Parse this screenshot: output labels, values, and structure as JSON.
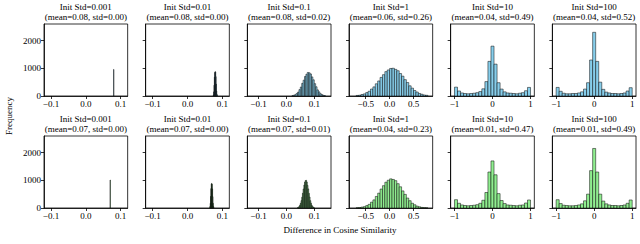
{
  "xlabel": "Difference in Cosine Similarity",
  "ylabel": "Frequency",
  "chart_data": [
    {
      "type": "histogram",
      "title": "Init Std=0.001",
      "subtitle": "(mean=0.08, std=0.00)",
      "color": "#87ceeb",
      "bins": [
        0.0795,
        0.0805
      ],
      "counts": [
        960
      ],
      "xlim": [
        -0.12,
        0.12
      ],
      "xticks": [
        {
          "value": -0.1,
          "label": "−0.1"
        },
        {
          "value": 0,
          "label": "0.0"
        },
        0.1
      ],
      "ylim": [
        0,
        2600
      ],
      "yticks": [
        0,
        1000,
        2000
      ]
    },
    {
      "type": "histogram",
      "title": "Init Std=0.01",
      "subtitle": "(mean=0.08, std=0.00)",
      "color": "#87ceeb",
      "bins": [
        0.074,
        0.075,
        0.076,
        0.077,
        0.078,
        0.079,
        0.08,
        0.081,
        0.082,
        0.083,
        0.084,
        0.085,
        0.086
      ],
      "counts": [
        40,
        150,
        390,
        680,
        850,
        880,
        870,
        700,
        430,
        180,
        60,
        15
      ],
      "xlim": [
        -0.12,
        0.12
      ],
      "xticks": [
        {
          "value": -0.1,
          "label": "−0.1"
        },
        {
          "value": 0,
          "label": "0.0"
        },
        0.1
      ],
      "ylim": [
        0,
        2600
      ],
      "yticks": [
        0,
        1000,
        2000
      ],
      "tick_labels": "x"
    },
    {
      "type": "histogram",
      "title": "Init Std=0.1",
      "subtitle": "(mean=0.08, std=0.02)",
      "color": "#87ceeb",
      "bins": [
        0.02,
        0.025,
        0.03,
        0.035,
        0.04,
        0.045,
        0.05,
        0.055,
        0.06,
        0.065,
        0.07,
        0.075,
        0.08,
        0.085,
        0.09,
        0.095,
        0.1,
        0.105,
        0.11,
        0.115,
        0.12,
        0.125,
        0.13,
        0.135,
        0.14
      ],
      "counts": [
        12,
        29,
        48,
        92,
        140,
        231,
        325,
        458,
        572,
        705,
        786,
        850,
        838,
        797,
        690,
        585,
        446,
        334,
        221,
        150,
        85,
        53,
        25,
        15
      ],
      "xlim": [
        -0.14,
        0.16
      ],
      "xticks": [
        {
          "value": -0.1,
          "label": "−0.1"
        },
        {
          "value": 0,
          "label": "0.0"
        },
        0.1
      ],
      "ylim": [
        0,
        2600
      ],
      "yticks": [
        0,
        1000,
        2000
      ],
      "tick_labels": "x"
    },
    {
      "type": "histogram",
      "title": "Init Std=1",
      "subtitle": "(mean=0.06, std=0.26)",
      "color": "#87ceeb",
      "bins": [
        -0.7,
        -0.65,
        -0.6,
        -0.55,
        -0.5,
        -0.45,
        -0.4,
        -0.35,
        -0.3,
        -0.25,
        -0.2,
        -0.15,
        -0.1,
        -0.05,
        0,
        0.05,
        0.1,
        0.15,
        0.2,
        0.25,
        0.3,
        0.35,
        0.4,
        0.45,
        0.5,
        0.55,
        0.6,
        0.65,
        0.7,
        0.75,
        0.8
      ],
      "counts": [
        20,
        28,
        54,
        77,
        124,
        171,
        252,
        329,
        441,
        543,
        672,
        770,
        880,
        941,
        995,
        1002,
        962,
        912,
        811,
        716,
        590,
        486,
        368,
        284,
        198,
        144,
        91,
        63,
        36,
        25
      ],
      "xlim": [
        -0.85,
        0.9
      ],
      "xticks": [
        {
          "value": -0.5,
          "label": "−0.5"
        },
        {
          "value": 0,
          "label": "0.0"
        },
        0.5
      ],
      "ylim": [
        0,
        2600
      ],
      "yticks": [
        0,
        1000,
        2000
      ],
      "tick_labels": "x"
    },
    {
      "type": "histogram",
      "title": "Init Std=10",
      "subtitle": "(mean=0.04, std=0.49)",
      "color": "#87ceeb",
      "bins": [
        -1,
        -0.92,
        -0.84,
        -0.76,
        -0.68,
        -0.6,
        -0.52,
        -0.44,
        -0.36,
        -0.28,
        -0.2,
        -0.12,
        -0.04,
        0.04,
        0.12,
        0.2,
        0.28,
        0.36,
        0.44,
        0.52,
        0.6,
        0.68,
        0.76,
        0.84,
        0.92,
        1
      ],
      "counts": [
        320,
        180,
        110,
        90,
        80,
        90,
        100,
        120,
        160,
        260,
        520,
        1250,
        1800,
        1150,
        480,
        250,
        150,
        110,
        100,
        90,
        80,
        100,
        120,
        190,
        310
      ],
      "xlim": [
        -1.1,
        1.1
      ],
      "xticks": [
        {
          "value": -1,
          "label": "−1"
        },
        0,
        1
      ],
      "ylim": [
        0,
        2600
      ],
      "yticks": [
        0,
        1000,
        2000
      ],
      "tick_labels": "x"
    },
    {
      "type": "histogram",
      "title": "Init Std=100",
      "subtitle": "(mean=0.04, std=0.52)",
      "color": "#87ceeb",
      "bins": [
        -1,
        -0.92,
        -0.84,
        -0.76,
        -0.68,
        -0.6,
        -0.52,
        -0.44,
        -0.36,
        -0.28,
        -0.2,
        -0.12,
        -0.04,
        0.04,
        0.12,
        0.2,
        0.28,
        0.36,
        0.44,
        0.52,
        0.6,
        0.68,
        0.76,
        0.84,
        0.92,
        1
      ],
      "counts": [
        310,
        170,
        100,
        80,
        80,
        90,
        90,
        110,
        150,
        250,
        480,
        1300,
        2300,
        1250,
        500,
        240,
        140,
        110,
        90,
        90,
        80,
        90,
        110,
        180,
        300
      ],
      "xlim": [
        -1.1,
        1.1
      ],
      "xticks": [
        {
          "value": -1,
          "label": "−1"
        },
        0,
        1
      ],
      "ylim": [
        0,
        2600
      ],
      "yticks": [
        0,
        1000,
        2000
      ],
      "tick_labels": "x"
    },
    {
      "type": "histogram",
      "title": "Init Std=0.001",
      "subtitle": "(mean=0.07, std=0.00)",
      "color": "#90ee90",
      "bins": [
        0.0695,
        0.0705
      ],
      "counts": [
        1010
      ],
      "xlim": [
        -0.12,
        0.12
      ],
      "xticks": [
        {
          "value": -0.1,
          "label": "−0.1"
        },
        {
          "value": 0,
          "label": "0.0"
        },
        0.1
      ],
      "ylim": [
        0,
        2600
      ],
      "yticks": [
        0,
        1000,
        2000
      ]
    },
    {
      "type": "histogram",
      "title": "Init Std=0.01",
      "subtitle": "(mean=0.07, std=0.00)",
      "color": "#90ee90",
      "bins": [
        0.064,
        0.065,
        0.066,
        0.067,
        0.068,
        0.069,
        0.07,
        0.071,
        0.072,
        0.073,
        0.074,
        0.075,
        0.076
      ],
      "counts": [
        50,
        170,
        420,
        700,
        870,
        890,
        860,
        690,
        410,
        170,
        55,
        12
      ],
      "xlim": [
        -0.12,
        0.12
      ],
      "xticks": [
        {
          "value": -0.1,
          "label": "−0.1"
        },
        {
          "value": 0,
          "label": "0.0"
        },
        0.1
      ],
      "ylim": [
        0,
        2600
      ],
      "yticks": [
        0,
        1000,
        2000
      ],
      "tick_labels": "x"
    },
    {
      "type": "histogram",
      "title": "Init Std=0.1",
      "subtitle": "(mean=0.07, std=0.01)",
      "color": "#90ee90",
      "bins": [
        0.04,
        0.0425,
        0.045,
        0.0475,
        0.05,
        0.0525,
        0.055,
        0.0575,
        0.06,
        0.0625,
        0.065,
        0.0675,
        0.07,
        0.0725,
        0.075,
        0.0775,
        0.08,
        0.0825,
        0.085,
        0.0875,
        0.09,
        0.0925,
        0.095,
        0.0975,
        0.1
      ],
      "counts": [
        15,
        33,
        60,
        106,
        172,
        270,
        391,
        534,
        688,
        829,
        935,
        990,
        1000,
        940,
        820,
        690,
        530,
        395,
        265,
        176,
        101,
        63,
        30,
        17
      ],
      "xlim": [
        -0.14,
        0.16
      ],
      "xticks": [
        {
          "value": -0.1,
          "label": "−0.1"
        },
        {
          "value": 0,
          "label": "0.0"
        },
        0.1
      ],
      "ylim": [
        0,
        2600
      ],
      "yticks": [
        0,
        1000,
        2000
      ],
      "tick_labels": "x"
    },
    {
      "type": "histogram",
      "title": "Init Std=1",
      "subtitle": "(mean=0.04, std=0.23)",
      "color": "#90ee90",
      "bins": [
        -0.7,
        -0.65,
        -0.6,
        -0.55,
        -0.5,
        -0.45,
        -0.4,
        -0.35,
        -0.3,
        -0.25,
        -0.2,
        -0.15,
        -0.1,
        -0.05,
        0,
        0.05,
        0.1,
        0.15,
        0.2,
        0.25,
        0.3,
        0.35,
        0.4,
        0.45,
        0.5,
        0.55,
        0.6,
        0.65,
        0.7,
        0.75,
        0.8
      ],
      "counts": [
        9,
        14,
        32,
        49,
        88,
        131,
        210,
        293,
        417,
        536,
        684,
        806,
        931,
        1003,
        1052,
        1031,
        987,
        878,
        766,
        617,
        492,
        359,
        263,
        171,
        117,
        68,
        44,
        21,
        13,
        6
      ],
      "xlim": [
        -0.85,
        0.9
      ],
      "xticks": [
        {
          "value": -0.5,
          "label": "−0.5"
        },
        {
          "value": 0,
          "label": "0.0"
        },
        0.5
      ],
      "ylim": [
        0,
        2600
      ],
      "yticks": [
        0,
        1000,
        2000
      ],
      "tick_labels": "x"
    },
    {
      "type": "histogram",
      "title": "Init Std=10",
      "subtitle": "(mean=0.01, std=0.47)",
      "color": "#90ee90",
      "bins": [
        -1,
        -0.92,
        -0.84,
        -0.76,
        -0.68,
        -0.6,
        -0.52,
        -0.44,
        -0.36,
        -0.28,
        -0.2,
        -0.12,
        -0.04,
        0.04,
        0.12,
        0.2,
        0.28,
        0.36,
        0.44,
        0.52,
        0.6,
        0.68,
        0.76,
        0.84,
        0.92,
        1
      ],
      "counts": [
        300,
        170,
        110,
        90,
        80,
        90,
        100,
        120,
        170,
        280,
        560,
        1300,
        1700,
        1200,
        520,
        270,
        160,
        110,
        100,
        90,
        80,
        100,
        110,
        180,
        290
      ],
      "xlim": [
        -1.1,
        1.1
      ],
      "xticks": [
        {
          "value": -1,
          "label": "−1"
        },
        0,
        1
      ],
      "ylim": [
        0,
        2600
      ],
      "yticks": [
        0,
        1000,
        2000
      ],
      "tick_labels": "x"
    },
    {
      "type": "histogram",
      "title": "Init Std=100",
      "subtitle": "(mean=0.01, std=0.49)",
      "color": "#90ee90",
      "bins": [
        -1,
        -0.92,
        -0.84,
        -0.76,
        -0.68,
        -0.6,
        -0.52,
        -0.44,
        -0.36,
        -0.28,
        -0.2,
        -0.12,
        -0.04,
        0.04,
        0.12,
        0.2,
        0.28,
        0.36,
        0.44,
        0.52,
        0.6,
        0.68,
        0.76,
        0.84,
        0.92,
        1
      ],
      "counts": [
        300,
        160,
        100,
        90,
        80,
        80,
        90,
        110,
        150,
        260,
        500,
        1350,
        2150,
        1300,
        500,
        250,
        150,
        110,
        90,
        90,
        80,
        90,
        110,
        170,
        290
      ],
      "xlim": [
        -1.1,
        1.1
      ],
      "xticks": [
        {
          "value": -1,
          "label": "−1"
        },
        0,
        1
      ],
      "ylim": [
        0,
        2600
      ],
      "yticks": [
        0,
        1000,
        2000
      ],
      "tick_labels": "x"
    }
  ]
}
